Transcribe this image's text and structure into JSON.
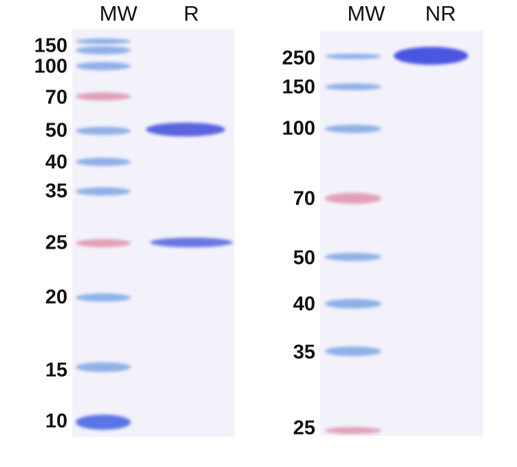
{
  "left_panel": {
    "lane_labels": [
      "MW",
      "R"
    ],
    "markers": [
      "150",
      "100",
      "70",
      "50",
      "40",
      "35",
      "25",
      "20",
      "15",
      "10"
    ]
  },
  "right_panel": {
    "lane_labels": [
      "MW",
      "NR"
    ],
    "markers": [
      "250",
      "150",
      "100",
      "70",
      "50",
      "40",
      "35",
      "25"
    ]
  },
  "colors": {
    "ladder_blue": "#8fb0e6",
    "ladder_pink": "#e2a0b8",
    "sample_band": "#5a63e0",
    "gel_background": "#f3f2fb"
  }
}
